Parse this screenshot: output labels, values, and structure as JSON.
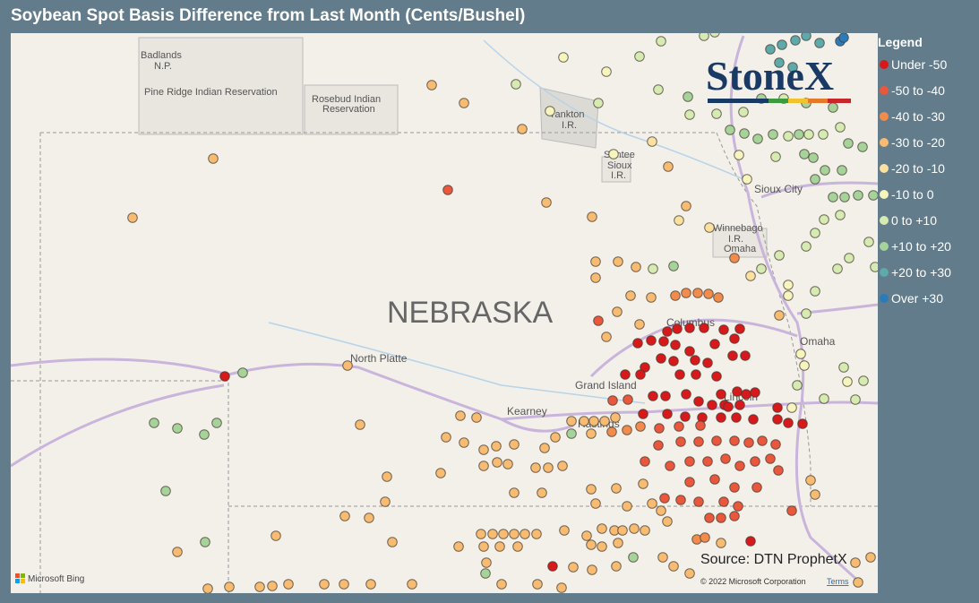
{
  "header": {
    "title": "Soybean Spot Basis Difference from Last Month (Cents/Bushel)"
  },
  "legend": {
    "title": "Legend",
    "items": [
      {
        "label": "Under -50",
        "color": "#d7191c"
      },
      {
        "label": "-50 to -40",
        "color": "#e9573c"
      },
      {
        "label": "-40 to -30",
        "color": "#f18c4d"
      },
      {
        "label": "-30 to -20",
        "color": "#f8bb72"
      },
      {
        "label": "-20 to -10",
        "color": "#fbe1a0"
      },
      {
        "label": "-10 to 0",
        "color": "#f5f5bd"
      },
      {
        "label": "0 to +10",
        "color": "#d6ebb1"
      },
      {
        "label": "+10 to +20",
        "color": "#a6d39a"
      },
      {
        "label": "+20 to +30",
        "color": "#5ea9a9"
      },
      {
        "label": "Over +30",
        "color": "#2b7bba"
      }
    ]
  },
  "map": {
    "labels": [
      "Badlands",
      "N.P.",
      "Pine Ridge Indian Reservation",
      "Rosebud Indian",
      "Reservation",
      "Yankton",
      "I.R.",
      "Santee",
      "Sioux",
      "I.R.",
      "Sioux City",
      "Winnebago",
      "I.R.",
      "Omaha",
      "NEBRASKA",
      "Columbus",
      "Omaha",
      "North Platte",
      "Grand Island",
      "Kearney",
      "Hastings",
      "Lincoln"
    ]
  },
  "logo": "StoneX",
  "source": "Source: DTN ProphetX",
  "attribution": {
    "bing": "Microsoft Bing",
    "copyright": "© 2022 Microsoft Corporation",
    "terms": "Terms"
  }
}
